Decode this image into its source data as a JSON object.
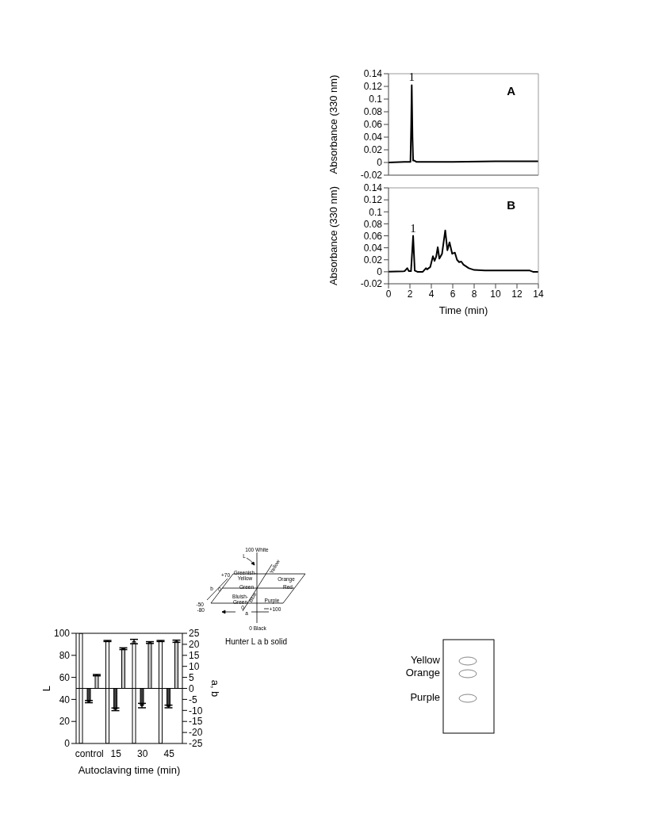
{
  "chart_data": [
    {
      "type": "line",
      "ylabel": "Absorbance (330 nm)",
      "xlim": [
        0,
        14
      ],
      "ylim": [
        -0.02,
        0.14
      ],
      "yticks": [
        -0.02,
        0,
        0.02,
        0.04,
        0.06,
        0.08,
        0.1,
        0.12,
        0.14
      ],
      "tick_labels": "y",
      "color": "#000000",
      "x": [
        0,
        1.5,
        2.05,
        2.12,
        2.17,
        2.24,
        2.3,
        2.4,
        2.6,
        4,
        6,
        10,
        14
      ],
      "values": [
        0,
        0.001,
        0.001,
        0.06,
        0.122,
        0.04,
        0.003,
        0.003,
        0.001,
        0.001,
        0.001,
        0.002,
        0.002
      ],
      "annotations": [
        {
          "text": "1",
          "x": 2.17,
          "y": 0.122
        },
        "A"
      ]
    },
    {
      "type": "line",
      "xlabel": "Time (min)",
      "ylabel": "Absorbance (330 nm)",
      "xlim": [
        0,
        14
      ],
      "xticks": [
        0,
        2,
        4,
        6,
        8,
        10,
        12,
        14
      ],
      "ylim": [
        -0.02,
        0.14
      ],
      "yticks": [
        -0.02,
        0,
        0.02,
        0.04,
        0.06,
        0.08,
        0.1,
        0.12,
        0.14
      ],
      "color": "#000000",
      "x": [
        0,
        1.5,
        1.75,
        1.9,
        2.1,
        2.3,
        2.45,
        2.7,
        3.2,
        3.5,
        3.6,
        3.9,
        4.15,
        4.3,
        4.45,
        4.6,
        4.75,
        5,
        5.3,
        5.5,
        5.7,
        5.95,
        6.2,
        6.4,
        6.6,
        6.8,
        7,
        7.5,
        8,
        9,
        10,
        12,
        13.2,
        13.5,
        14
      ],
      "values": [
        0,
        0.001,
        0.006,
        0.001,
        0.001,
        0.06,
        0.002,
        0,
        0,
        0.006,
        0.004,
        0.008,
        0.026,
        0.018,
        0.025,
        0.041,
        0.022,
        0.03,
        0.069,
        0.036,
        0.049,
        0.03,
        0.032,
        0.02,
        0.016,
        0.017,
        0.012,
        0.006,
        0.003,
        0.002,
        0.002,
        0.002,
        0.002,
        0,
        0
      ],
      "annotations": [
        {
          "text": "1",
          "x": 2.3,
          "y": 0.06
        },
        "B"
      ]
    },
    {
      "type": "bar",
      "xlabel": "Autoclaving time (min)",
      "ylabel": "L",
      "y2label": "a, b",
      "categories": [
        "control",
        "15",
        "30",
        "45"
      ],
      "ylim": [
        0,
        100
      ],
      "yticks": [
        0,
        20,
        40,
        60,
        80,
        100
      ],
      "y2lim": [
        -25,
        25
      ],
      "y2ticks": [
        -25,
        -20,
        -15,
        -10,
        -5,
        0,
        5,
        10,
        15,
        20,
        25
      ],
      "series": [
        {
          "color": "#ffffff",
          "values": [
            100,
            93,
            92.5,
            93
          ],
          "errors": [
            null,
            0.5,
            2,
            0.5
          ]
        },
        {
          "color": "#404040",
          "axis": "y2",
          "values": [
            -6,
            -9.5,
            -7.8,
            -8.2
          ],
          "errors": [
            0.5,
            0.6,
            1,
            0.6
          ]
        },
        {
          "color": "#c8c8c8",
          "axis": "y2",
          "values": [
            6,
            18,
            20.8,
            21.4
          ],
          "errors": [
            0.3,
            0.4,
            0.4,
            0.5
          ]
        }
      ],
      "ref_lines": [
        {
          "axis": "y2",
          "value": 0,
          "color": "#000000"
        }
      ]
    },
    {
      "type": "other",
      "title": "Hunter L a b solid",
      "annotations": [
        "100 White",
        "L",
        "+70",
        "Greenish-",
        "Yellow",
        "Orange",
        "b",
        "0",
        "Green",
        "Red",
        "Bluish-",
        "Green",
        "Blue",
        "Purple",
        "-50",
        "-80",
        "0",
        "a",
        "+100",
        "0 Black",
        "Yellow"
      ]
    },
    {
      "type": "other",
      "annotations": [
        "Yellow",
        "Orange",
        "Purple"
      ]
    }
  ]
}
